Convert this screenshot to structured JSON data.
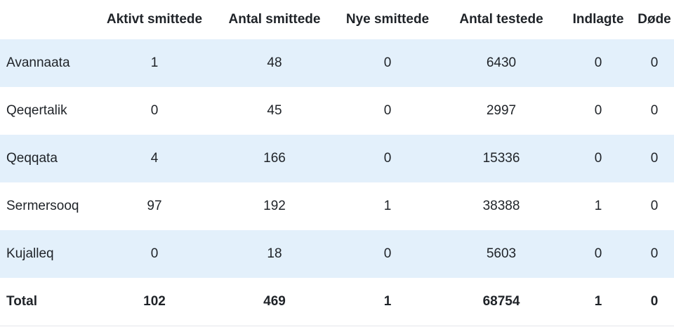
{
  "table": {
    "headers": [
      "",
      "Aktivt smittede",
      "Antal smittede",
      "Nye smittede",
      "Antal testede",
      "Indlagte",
      "Døde"
    ],
    "rows": [
      [
        "Avannaata",
        "1",
        "48",
        "0",
        "6430",
        "0",
        "0"
      ],
      [
        "Qeqertalik",
        "0",
        "45",
        "0",
        "2997",
        "0",
        "0"
      ],
      [
        "Qeqqata",
        "4",
        "166",
        "0",
        "15336",
        "0",
        "0"
      ],
      [
        "Sermersooq",
        "97",
        "192",
        "1",
        "38388",
        "1",
        "0"
      ],
      [
        "Kujalleq",
        "0",
        "18",
        "0",
        "5603",
        "0",
        "0"
      ]
    ],
    "total": [
      "Total",
      "102",
      "469",
      "1",
      "68754",
      "1",
      "0"
    ]
  },
  "colors": {
    "row_stripe": "#e3f0fb",
    "text": "#1f2328"
  }
}
